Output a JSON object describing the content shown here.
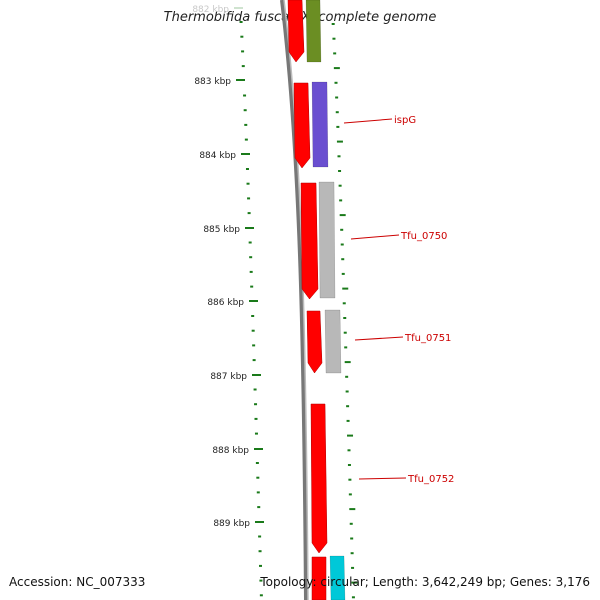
{
  "title": "Thermobifida fusca YX, complete genome",
  "footer": {
    "accession": "Accession: NC_007333",
    "summary": "Topology: circular; Length: 3,642,249 bp; Genes: 3,176"
  },
  "axis": {
    "ticks": [
      {
        "label": "882 kbp",
        "faded": true
      },
      {
        "label": "883 kbp"
      },
      {
        "label": "884 kbp"
      },
      {
        "label": "885 kbp"
      },
      {
        "label": "886 kbp"
      },
      {
        "label": "887 kbp"
      },
      {
        "label": "888 kbp"
      },
      {
        "label": "889 kbp"
      }
    ]
  },
  "genes": [
    {
      "name": "",
      "color": "#6b8e23"
    },
    {
      "name": "ispG",
      "color": "#6a4fd0"
    },
    {
      "name": "Tfu_0750",
      "color": "#b8b8b8"
    },
    {
      "name": "Tfu_0751",
      "color": "#b8b8b8"
    },
    {
      "name": "Tfu_0752",
      "color": ""
    },
    {
      "name": "",
      "color": "#00c8d8"
    }
  ],
  "colors": {
    "cds": "#ff0000",
    "tick": "#1a7a1a",
    "label_line": "#cc0000",
    "backbone": "#777777"
  }
}
